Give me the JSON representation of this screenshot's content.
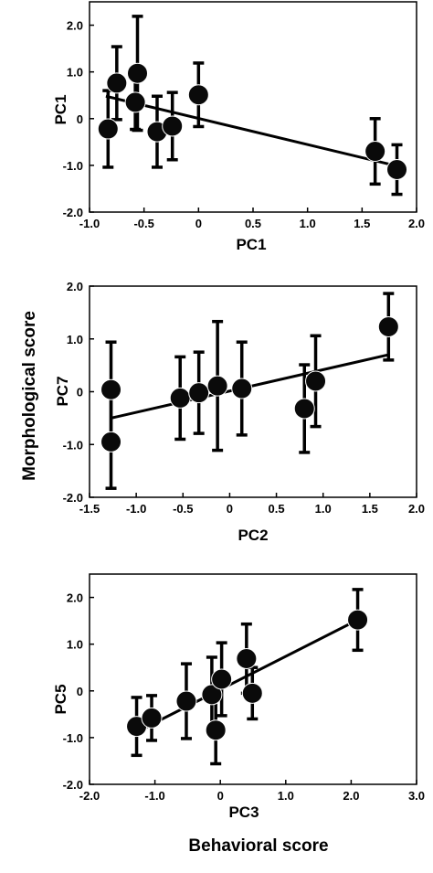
{
  "figure": {
    "ylabel": "Morphological score",
    "xlabel": "Behavioral score"
  },
  "chart_data": [
    {
      "type": "scatter",
      "xlabel": "PC1",
      "ylabel": "PC1",
      "xlim": [
        -1.0,
        2.0
      ],
      "ylim": [
        -2.0,
        2.5
      ],
      "xticks": [
        -1.0,
        -0.5,
        0,
        0.5,
        1.0,
        1.5,
        2.0
      ],
      "xtick_labels": [
        "-1.0",
        "-0.5",
        "0",
        "0.5",
        "1.0",
        "1.5",
        "2.0"
      ],
      "yticks": [
        -2.0,
        -1.0,
        0,
        1.0,
        2.0
      ],
      "ytick_labels": [
        "-2.0",
        "-1.0",
        "0",
        "1.0",
        "2.0"
      ],
      "grid": false,
      "points": [
        {
          "x": -0.83,
          "y": -0.22,
          "err": 0.82
        },
        {
          "x": -0.75,
          "y": 0.76,
          "err": 0.78
        },
        {
          "x": -0.58,
          "y": 0.35,
          "err": 0.58
        },
        {
          "x": -0.56,
          "y": 0.97,
          "err": 1.22
        },
        {
          "x": -0.38,
          "y": -0.28,
          "err": 0.76
        },
        {
          "x": -0.24,
          "y": -0.16,
          "err": 0.72
        },
        {
          "x": 0.0,
          "y": 0.51,
          "err": 0.68
        },
        {
          "x": 1.62,
          "y": -0.7,
          "err": 0.7
        },
        {
          "x": 1.82,
          "y": -1.09,
          "err": 0.53
        }
      ],
      "fit_line": {
        "x": [
          -0.85,
          1.85
        ],
        "y": [
          0.48,
          -1.03
        ]
      }
    },
    {
      "type": "scatter",
      "xlabel": "PC2",
      "ylabel": "PC7",
      "xlim": [
        -1.5,
        2.0
      ],
      "ylim": [
        -2.0,
        2.0
      ],
      "xticks": [
        -1.5,
        -1.0,
        -0.5,
        0,
        0.5,
        1.0,
        1.5,
        2.0
      ],
      "xtick_labels": [
        "-1.5",
        "-1.0",
        "-0.5",
        "0",
        "0.5",
        "1.0",
        "1.5",
        "2.0"
      ],
      "yticks": [
        -2.0,
        -1.0,
        0,
        1.0,
        2.0
      ],
      "ytick_labels": [
        "-2.0",
        "-1.0",
        "0",
        "1.0",
        "2.0"
      ],
      "grid": false,
      "points": [
        {
          "x": -1.27,
          "y": 0.04,
          "err": 0.9
        },
        {
          "x": -1.27,
          "y": -0.95,
          "err": 0.88
        },
        {
          "x": -0.53,
          "y": -0.12,
          "err": 0.78
        },
        {
          "x": -0.33,
          "y": -0.02,
          "err": 0.77
        },
        {
          "x": -0.13,
          "y": 0.11,
          "err": 1.22
        },
        {
          "x": 0.13,
          "y": 0.06,
          "err": 0.88
        },
        {
          "x": 0.8,
          "y": -0.32,
          "err": 0.83
        },
        {
          "x": 0.92,
          "y": 0.2,
          "err": 0.86
        },
        {
          "x": 1.7,
          "y": 1.23,
          "err": 0.63
        }
      ],
      "fit_line": {
        "x": [
          -1.27,
          1.7
        ],
        "y": [
          -0.5,
          0.7
        ]
      }
    },
    {
      "type": "scatter",
      "xlabel": "PC3",
      "ylabel": "PC5",
      "xlim": [
        -2.0,
        3.0
      ],
      "ylim": [
        -2.0,
        2.5
      ],
      "xticks": [
        -2.0,
        -1.0,
        0,
        1.0,
        2.0,
        3.0
      ],
      "xtick_labels": [
        "-2.0",
        "-1.0",
        "0",
        "1.0",
        "2.0",
        "3.0"
      ],
      "yticks": [
        -2.0,
        -1.0,
        0,
        1.0,
        2.0
      ],
      "ytick_labels": [
        "-2.0",
        "-1.0",
        "0",
        "1.0",
        "2.0"
      ],
      "grid": false,
      "points": [
        {
          "x": -1.28,
          "y": -0.76,
          "err": 0.62
        },
        {
          "x": -1.05,
          "y": -0.58,
          "err": 0.48
        },
        {
          "x": -0.52,
          "y": -0.22,
          "err": 0.8
        },
        {
          "x": -0.13,
          "y": -0.08,
          "err": 0.8
        },
        {
          "x": -0.07,
          "y": -0.84,
          "err": 0.72
        },
        {
          "x": 0.02,
          "y": 0.25,
          "err": 0.78
        },
        {
          "x": 0.4,
          "y": 0.69,
          "err": 0.74
        },
        {
          "x": 0.49,
          "y": -0.05,
          "err": 0.55
        },
        {
          "x": 2.1,
          "y": 1.52,
          "err": 0.65
        }
      ],
      "fit_line": {
        "x": [
          -1.28,
          2.1
        ],
        "y": [
          -0.88,
          1.52
        ]
      }
    }
  ]
}
